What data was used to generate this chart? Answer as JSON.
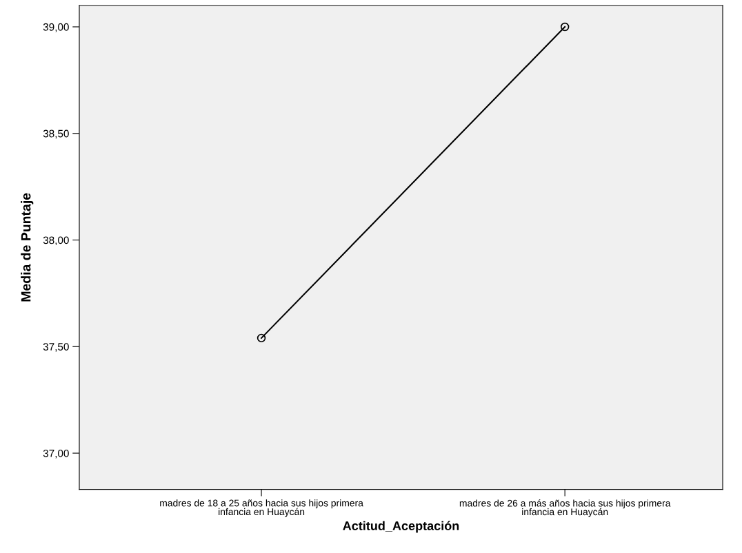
{
  "chart_data": {
    "type": "line",
    "xlabel": "Actitud_Aceptación",
    "ylabel": "Media de Puntaje",
    "categories": [
      "madres de 18 a 25 años hacia sus hijos primera\ninfancia en Huaycán",
      "madres de 26 a más años hacia sus hijos primera\ninfancia en Huaycán"
    ],
    "series": [
      {
        "color": "#000000",
        "values": [
          37.54,
          39.0
        ]
      }
    ],
    "ylim": [
      36.83,
      39.1
    ],
    "yticks": [
      {
        "value": 37.0,
        "label": "37,00"
      },
      {
        "value": 37.5,
        "label": "37,50"
      },
      {
        "value": 38.0,
        "label": "38,00"
      },
      {
        "value": 38.5,
        "label": "38,50"
      },
      {
        "value": 39.0,
        "label": "39,00"
      }
    ],
    "grid": false,
    "legend": false,
    "marker": "circle",
    "line_style": "solid"
  }
}
